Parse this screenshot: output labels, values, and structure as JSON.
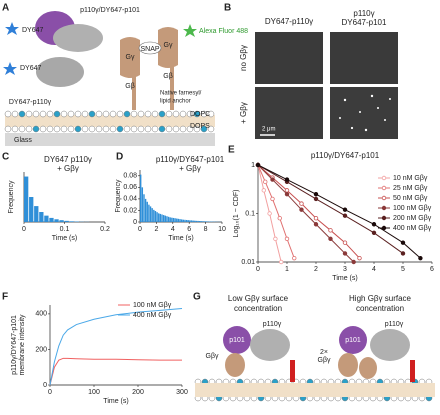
{
  "panel_a": {
    "label": "A",
    "texts": [
      "p110γ/DY647-p101",
      "DY647",
      "SNAP",
      "Alexa Fluor 488",
      "DY647",
      "Gγ",
      "Gβ",
      "Gγ",
      "Gβ",
      "DY647-p110γ",
      "Native farnesyl/",
      "lipid anchor",
      "DOPC",
      "DOPS",
      "Glass"
    ]
  },
  "panel_b": {
    "label": "B",
    "columns": [
      [
        "DY647-p110γ"
      ],
      [
        "p110γ",
        "DY647-p101"
      ]
    ],
    "rows": [
      "no Gβγ",
      "+ Gβγ"
    ],
    "scale_bar": "2 μm"
  },
  "panel_g": {
    "label": "G",
    "headings": [
      [
        "Low Gβγ surface",
        "concentration"
      ],
      [
        "High Gβγ surface",
        "concentration"
      ]
    ],
    "texts": [
      "p101",
      "p110γ",
      "Gβγ",
      "p101",
      "p110γ",
      "2×",
      "Gβγ"
    ]
  },
  "chart_data": [
    {
      "type": "histogram",
      "panel_label": "C",
      "title": [
        "DY647 p110γ",
        "+ Gβγ"
      ],
      "x_label": "Time (s)",
      "y_label": "Frequency",
      "color": "#2f8fd8",
      "bins": [
        0,
        0.0125,
        0.025,
        0.0375,
        0.05,
        0.0625,
        0.075,
        0.0875,
        0.1,
        0.1125,
        0.125,
        0.1375,
        0.15,
        0.1625
      ],
      "values": [
        1.0,
        0.55,
        0.35,
        0.22,
        0.14,
        0.09,
        0.06,
        0.04,
        0.025,
        0.015,
        0.01,
        0.005,
        0.003
      ],
      "xlim": [
        0,
        0.2
      ],
      "xticks": [
        0,
        0.1,
        0.2
      ],
      "ylim": [
        0,
        1.1
      ]
    },
    {
      "type": "histogram",
      "panel_label": "D",
      "title": [
        "p110γ/DY647-p101",
        "+ Gβγ"
      ],
      "x_label": "Time (s)",
      "y_label": "Frequency",
      "color": "#2f8fd8",
      "bins": [
        0,
        0.2,
        0.4,
        0.6,
        0.8,
        1,
        1.2,
        1.4,
        1.6,
        1.8,
        2,
        2.2,
        2.4,
        2.6,
        2.8,
        3,
        3.2,
        3.4,
        3.6,
        3.8,
        4,
        4.2,
        4.4,
        4.6,
        4.8,
        5,
        5.2,
        5.4,
        5.6,
        5.8,
        6,
        6.2,
        6.4,
        6.6,
        6.8,
        7,
        7.2,
        7.4,
        7.6,
        7.8,
        8,
        8.2,
        8.4,
        8.6,
        8.8,
        9,
        9.2,
        9.4,
        9.6,
        9.8,
        10
      ],
      "values": [
        0.082,
        0.06,
        0.048,
        0.04,
        0.035,
        0.03,
        0.027,
        0.024,
        0.021,
        0.019,
        0.017,
        0.015,
        0.014,
        0.013,
        0.012,
        0.011,
        0.01,
        0.009,
        0.008,
        0.0075,
        0.007,
        0.0065,
        0.006,
        0.0055,
        0.005,
        0.0045,
        0.004,
        0.0038,
        0.0035,
        0.0032,
        0.003,
        0.0028,
        0.0025,
        0.0023,
        0.002,
        0.0019,
        0.0017,
        0.0015,
        0.0014,
        0.0012,
        0.0011,
        0.001,
        0.0009,
        0.0008,
        0.0007,
        0.0006,
        0.0005,
        0.0004,
        0.0003,
        0.0002
      ],
      "xlim": [
        0,
        10
      ],
      "xticks": [
        0,
        2,
        4,
        6,
        8,
        10
      ],
      "ylim": [
        0,
        0.09
      ],
      "yticks": [
        0,
        0.02,
        0.04,
        0.06,
        0.08
      ]
    },
    {
      "type": "line",
      "panel_label": "E",
      "title": [
        "p110γ/DY647-p101"
      ],
      "x_label": "Time (s)",
      "y_label": [
        "Log₁₀(1 − CDF)"
      ],
      "yscale": "log",
      "markers": true,
      "legend": "upper right",
      "xlim": [
        0,
        6
      ],
      "xticks": [
        0,
        1,
        2,
        3,
        4,
        5,
        6
      ],
      "ylim": [
        0.01,
        1
      ],
      "yticks": [
        1,
        0.1,
        0.01
      ],
      "series": [
        {
          "name": "10 nM Gβγ",
          "color": "#f2a0a0",
          "x": [
            0,
            0.2,
            0.4,
            0.6,
            0.8
          ],
          "values": [
            1,
            0.3,
            0.1,
            0.03,
            0.01
          ]
        },
        {
          "name": "25 nM Gβγ",
          "color": "#e07070",
          "x": [
            0,
            0.25,
            0.5,
            0.75,
            1,
            1.25
          ],
          "values": [
            1,
            0.45,
            0.2,
            0.08,
            0.03,
            0.012
          ]
        },
        {
          "name": "50 nM Gβγ",
          "color": "#c85050",
          "x": [
            0,
            0.5,
            1,
            1.5,
            2,
            2.5,
            3,
            3.5
          ],
          "values": [
            1,
            0.55,
            0.3,
            0.16,
            0.08,
            0.045,
            0.025,
            0.012
          ]
        },
        {
          "name": "100 nM Gβγ",
          "color": "#8b3a3a",
          "x": [
            0,
            0.5,
            1,
            1.5,
            2,
            2.5,
            3,
            3.3
          ],
          "values": [
            1,
            0.5,
            0.25,
            0.12,
            0.06,
            0.03,
            0.015,
            0.01
          ]
        },
        {
          "name": "200 nM Gβγ",
          "color": "#5a2020",
          "x": [
            0,
            1,
            2,
            3,
            4,
            5
          ],
          "values": [
            1,
            0.45,
            0.2,
            0.09,
            0.04,
            0.015
          ]
        },
        {
          "name": "400 nM Gβγ",
          "color": "#1a0a0a",
          "x": [
            0,
            1,
            2,
            3,
            4,
            5,
            5.6
          ],
          "values": [
            1,
            0.5,
            0.25,
            0.12,
            0.06,
            0.025,
            0.012
          ]
        }
      ]
    },
    {
      "type": "line",
      "panel_label": "F",
      "x_label": "Time (s)",
      "y_label": [
        "p110γ/DY647-p101",
        "membrane intensity"
      ],
      "legend": "upper right",
      "xlim": [
        0,
        300
      ],
      "xticks": [
        0,
        100,
        200,
        300
      ],
      "ylim": [
        0,
        450
      ],
      "yticks": [
        0,
        200,
        400
      ],
      "x": [
        0,
        10,
        20,
        30,
        40,
        60,
        100,
        150,
        200,
        250,
        300
      ],
      "series": [
        {
          "name": "100 nM Gβγ",
          "color": "#f06060",
          "values": [
            0,
            100,
            140,
            150,
            150,
            148,
            145,
            145,
            142,
            140,
            140
          ]
        },
        {
          "name": "400 nM Gβγ",
          "color": "#4aa8e8",
          "values": [
            0,
            130,
            220,
            280,
            310,
            340,
            370,
            395,
            410,
            420,
            430
          ]
        }
      ]
    }
  ]
}
